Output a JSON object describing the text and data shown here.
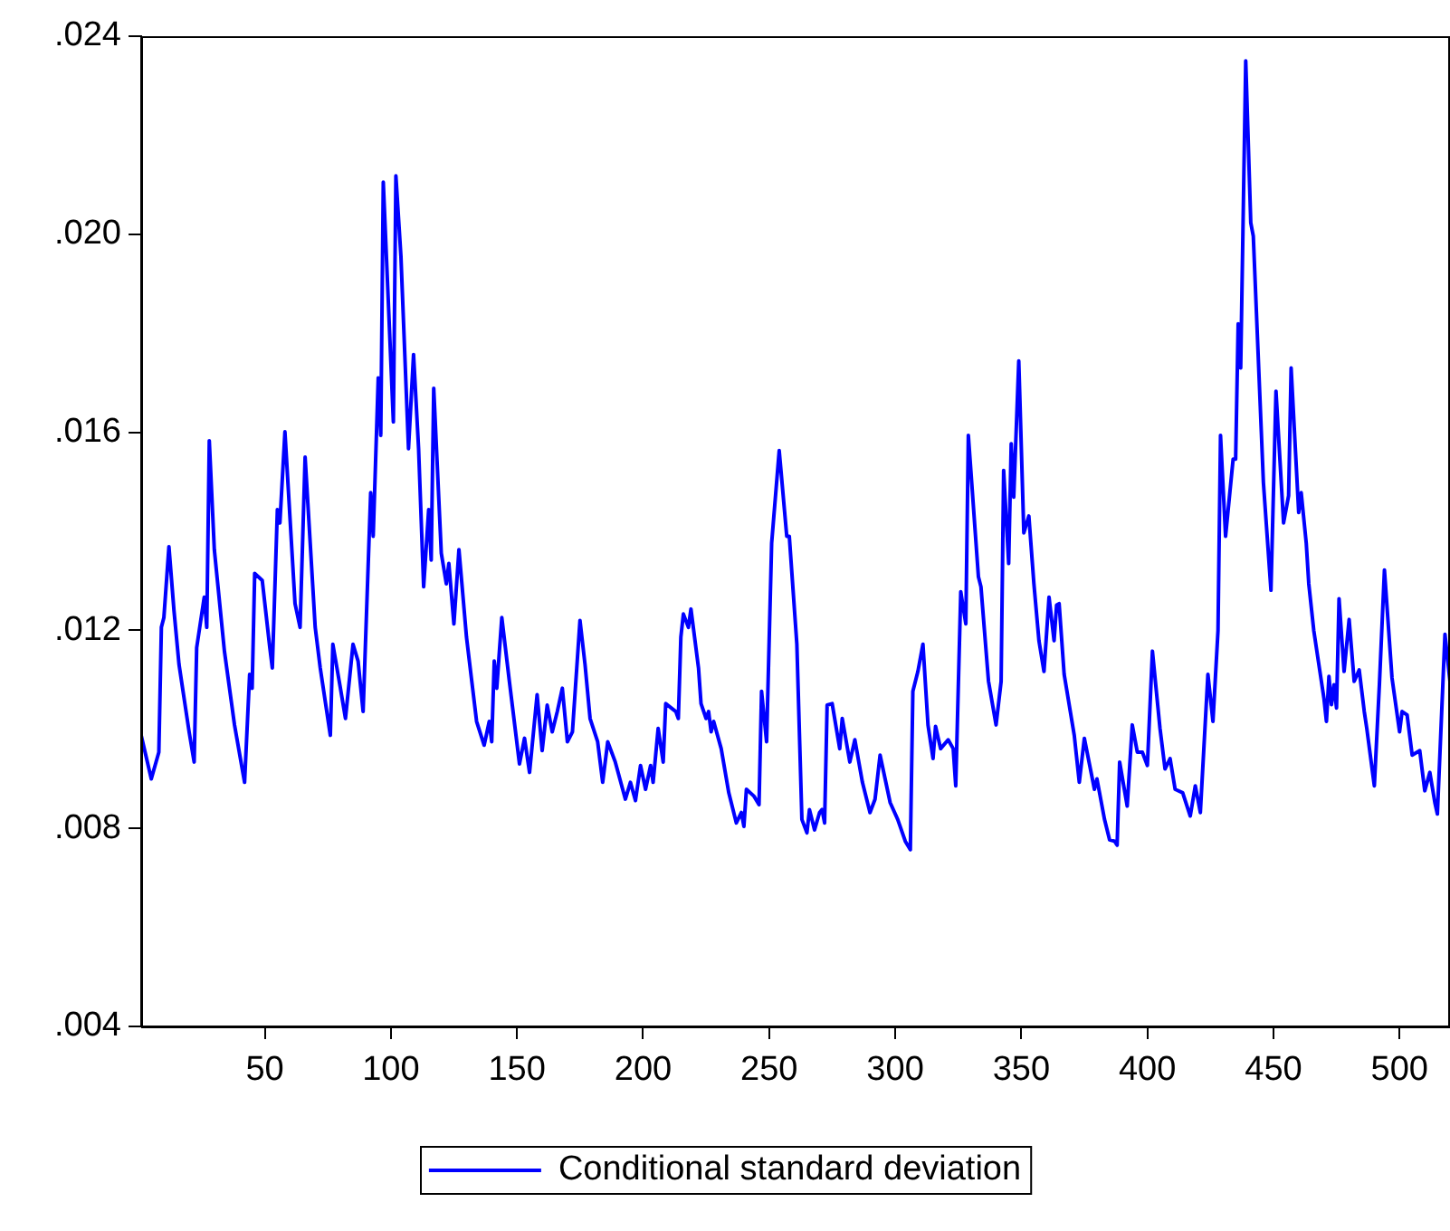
{
  "chart_data": {
    "type": "line",
    "xlim": [
      1,
      520
    ],
    "xticks": [
      50,
      100,
      150,
      200,
      250,
      300,
      350,
      400,
      450,
      500
    ],
    "ylim": [
      0.004,
      0.024
    ],
    "yticks": [
      {
        "value": 0.004,
        "label": ".004"
      },
      {
        "value": 0.008,
        "label": ".008"
      },
      {
        "value": 0.012,
        "label": ".012"
      },
      {
        "value": 0.016,
        "label": ".016"
      },
      {
        "value": 0.02,
        "label": ".020"
      },
      {
        "value": 0.024,
        "label": ".024"
      }
    ],
    "grid": false,
    "legend": "bottom",
    "marker": "none",
    "line_style": "solid",
    "series": [
      {
        "name": "Conditional standard deviation",
        "color": "#0000ff",
        "x": [
          1,
          5,
          8,
          9,
          10,
          12,
          14,
          16,
          20,
          22,
          23,
          26,
          27,
          28,
          30,
          34,
          38,
          42,
          44,
          45,
          46,
          49,
          52,
          53,
          55,
          56,
          58,
          62,
          64,
          66,
          70,
          72,
          76,
          77,
          80,
          82,
          85,
          87,
          89,
          92,
          93,
          95,
          96,
          97,
          101,
          102,
          104,
          107,
          109,
          111,
          113,
          115,
          116,
          117,
          120,
          122,
          123,
          125,
          127,
          130,
          134,
          137,
          139,
          140,
          141,
          142,
          144,
          147,
          151,
          153,
          155,
          158,
          160,
          162,
          164,
          166,
          168,
          170,
          172,
          175,
          177,
          179,
          182,
          184,
          186,
          189,
          193,
          195,
          197,
          199,
          201,
          203,
          204,
          206,
          208,
          209,
          213,
          214,
          215,
          216,
          218,
          219,
          222,
          223,
          225,
          226,
          227,
          228,
          231,
          234,
          237,
          239,
          240,
          241,
          244,
          246,
          247,
          249,
          251,
          254,
          257,
          258,
          261,
          263,
          265,
          266,
          268,
          270,
          271,
          272,
          273,
          275,
          278,
          279,
          282,
          284,
          287,
          290,
          292,
          294,
          296,
          298,
          301,
          304,
          306,
          307,
          309,
          311,
          313,
          315,
          316,
          318,
          321,
          323,
          324,
          326,
          328,
          329,
          333,
          334,
          337,
          340,
          342,
          343,
          345,
          346,
          347,
          349,
          351,
          353,
          355,
          357,
          359,
          361,
          363,
          364,
          365,
          367,
          371,
          373,
          375,
          379,
          380,
          383,
          385,
          387,
          388,
          389,
          392,
          394,
          396,
          398,
          400,
          402,
          405,
          407,
          409,
          411,
          414,
          417,
          419,
          421,
          424,
          426,
          428,
          429,
          431,
          434,
          435,
          436,
          437,
          439,
          441,
          442,
          446,
          449,
          451,
          454,
          456,
          457,
          460,
          461,
          463,
          464,
          466,
          470,
          471,
          472,
          473,
          474,
          475,
          476,
          478,
          480,
          482,
          484,
          486,
          487,
          490,
          492,
          494,
          497,
          500,
          501,
          503,
          505,
          508,
          510,
          512,
          514,
          515,
          518,
          520
        ],
        "values": [
          0.00988,
          0.009,
          0.00954,
          0.01206,
          0.01226,
          0.01369,
          0.0124,
          0.01131,
          0.00995,
          0.00934,
          0.01165,
          0.01267,
          0.01206,
          0.01583,
          0.01363,
          0.01158,
          0.01009,
          0.00893,
          0.01111,
          0.01083,
          0.01315,
          0.01301,
          0.01165,
          0.01124,
          0.01444,
          0.01417,
          0.01601,
          0.01254,
          0.01206,
          0.0155,
          0.01206,
          0.01124,
          0.00988,
          0.01172,
          0.01083,
          0.01022,
          0.01172,
          0.01138,
          0.01036,
          0.01478,
          0.0139,
          0.0171,
          0.01594,
          0.02105,
          0.01621,
          0.02118,
          0.01955,
          0.01567,
          0.01757,
          0.01567,
          0.01288,
          0.01444,
          0.01342,
          0.01689,
          0.01356,
          0.01294,
          0.01335,
          0.01213,
          0.01363,
          0.01186,
          0.01016,
          0.00968,
          0.01016,
          0.00975,
          0.01138,
          0.01083,
          0.01226,
          0.01097,
          0.0093,
          0.00982,
          0.00913,
          0.0107,
          0.00957,
          0.01049,
          0.00995,
          0.01036,
          0.01083,
          0.00975,
          0.00995,
          0.0122,
          0.01131,
          0.01022,
          0.00975,
          0.00893,
          0.00975,
          0.00934,
          0.00859,
          0.00893,
          0.00856,
          0.00927,
          0.00879,
          0.00927,
          0.00893,
          0.01002,
          0.00934,
          0.01052,
          0.01036,
          0.01022,
          0.01186,
          0.01233,
          0.01206,
          0.01243,
          0.01124,
          0.01052,
          0.01022,
          0.01036,
          0.00995,
          0.01016,
          0.00961,
          0.00872,
          0.00811,
          0.00832,
          0.00804,
          0.00879,
          0.00865,
          0.00848,
          0.01077,
          0.00975,
          0.01376,
          0.01563,
          0.0139,
          0.0139,
          0.01172,
          0.00818,
          0.00791,
          0.00838,
          0.00797,
          0.00832,
          0.00838,
          0.00811,
          0.01049,
          0.01052,
          0.00961,
          0.01022,
          0.00934,
          0.00979,
          0.00893,
          0.00832,
          0.00859,
          0.00948,
          0.009,
          0.00852,
          0.00818,
          0.00774,
          0.00757,
          0.01077,
          0.01117,
          0.01172,
          0.01009,
          0.00941,
          0.01006,
          0.00961,
          0.00979,
          0.00961,
          0.00886,
          0.01278,
          0.01213,
          0.01594,
          0.01308,
          0.01288,
          0.01097,
          0.01009,
          0.01097,
          0.01523,
          0.01335,
          0.01577,
          0.01469,
          0.01744,
          0.01397,
          0.01431,
          0.01294,
          0.01179,
          0.01117,
          0.01267,
          0.01179,
          0.01251,
          0.01254,
          0.01111,
          0.00988,
          0.00893,
          0.00982,
          0.00879,
          0.009,
          0.00818,
          0.00777,
          0.00774,
          0.00766,
          0.00934,
          0.00845,
          0.01009,
          0.00954,
          0.00954,
          0.00927,
          0.01158,
          0.01002,
          0.0092,
          0.00941,
          0.00879,
          0.00872,
          0.00825,
          0.00886,
          0.00832,
          0.01111,
          0.01016,
          0.01199,
          0.01594,
          0.0139,
          0.01546,
          0.01546,
          0.01819,
          0.0173,
          0.0235,
          0.02023,
          0.01996,
          0.01499,
          0.01281,
          0.01683,
          0.01417,
          0.01472,
          0.0173,
          0.01438,
          0.01478,
          0.01376,
          0.01294,
          0.01199,
          0.01063,
          0.01016,
          0.01107,
          0.0105,
          0.0109,
          0.01043,
          0.01264,
          0.01117,
          0.01222,
          0.01097,
          0.0112,
          0.01036,
          0.01002,
          0.00886,
          0.0109,
          0.01322,
          0.01104,
          0.00995,
          0.01036,
          0.01029,
          0.00948,
          0.00957,
          0.00876,
          0.00913,
          0.00852,
          0.00829,
          0.01192,
          0.01097
        ]
      }
    ]
  }
}
